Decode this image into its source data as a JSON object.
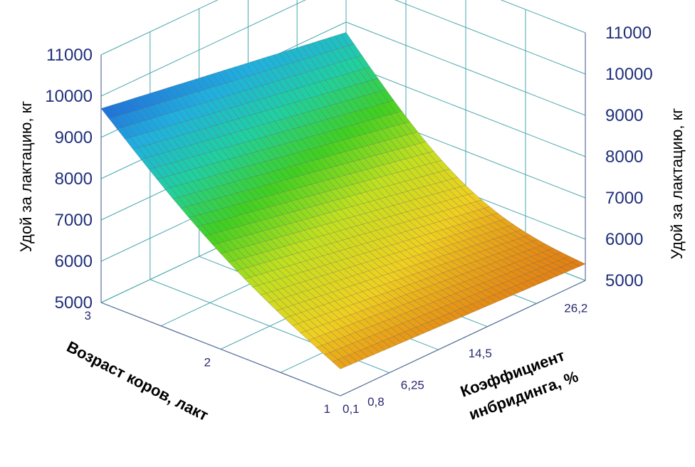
{
  "chart_data": {
    "type": "surface3d",
    "x_axis": {
      "label": "Коэффициент инбридинга, %",
      "ticks": [
        "0,1",
        "0,8",
        "6,25",
        "14,5",
        "26,2"
      ],
      "tick_values": [
        0.1,
        0.8,
        6.25,
        14.5,
        26.2
      ],
      "range": [
        0.1,
        30
      ]
    },
    "y_axis": {
      "label": "Возраст коров, лакт",
      "ticks": [
        "1",
        "2",
        "3"
      ],
      "tick_values": [
        1,
        2,
        3
      ],
      "range": [
        1,
        3
      ]
    },
    "z_axis": {
      "label": "Удой за лактацию, кг",
      "ticks": [
        "5000",
        "6000",
        "7000",
        "8000",
        "9000",
        "10000",
        "11000"
      ],
      "range": [
        5000,
        11000
      ]
    },
    "corner_values": {
      "inbreeding_min_age_max": 9700,
      "inbreeding_max_age_max": 8750,
      "inbreeding_min_age_min": 5650,
      "inbreeding_max_age_min": 5400
    },
    "colormap": [
      "#2060d8",
      "#20b0e0",
      "#20d0a0",
      "#40d020",
      "#c0e020",
      "#f0d020",
      "#e07010"
    ],
    "grid": true
  }
}
